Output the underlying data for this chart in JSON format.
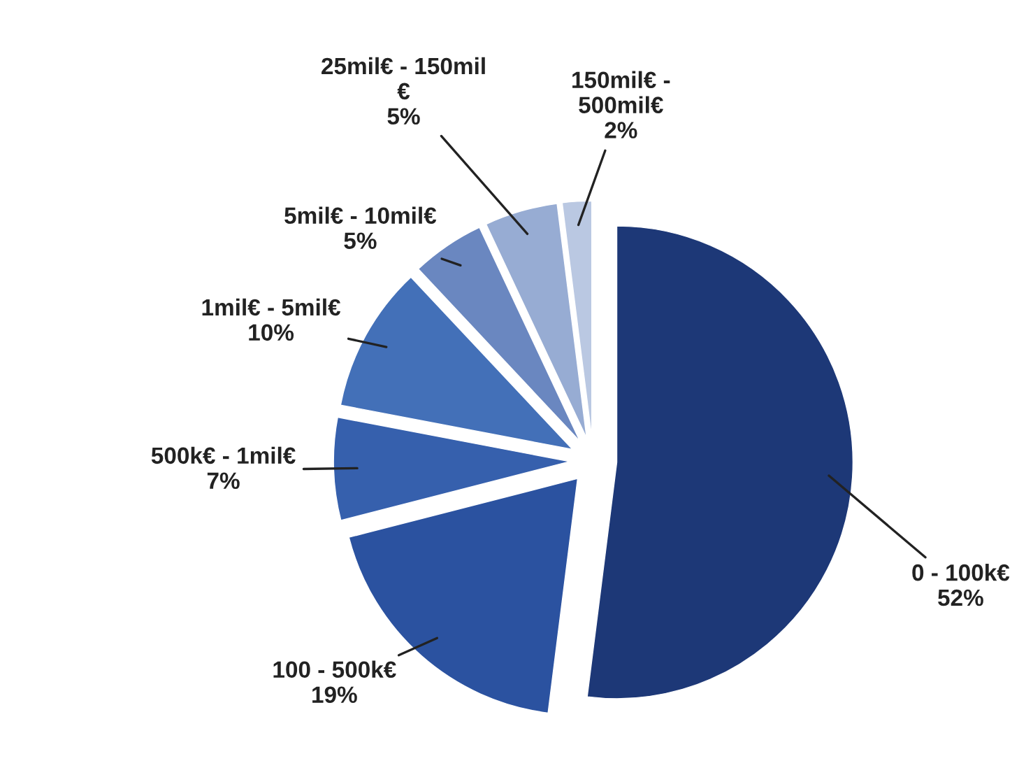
{
  "chart_data": {
    "type": "pie",
    "categories": [
      "0 - 100k€",
      "100 - 500k€",
      "500k€ - 1mil€",
      "1mil€ - 5mil€",
      "5mil€ - 10mil€",
      "25mil€ - 150mil\n€",
      "150mil€ -\n500mil€"
    ],
    "values": [
      52,
      19,
      7,
      10,
      5,
      5,
      2
    ],
    "value_labels": [
      "52%",
      "19%",
      "7%",
      "10%",
      "5%",
      "5%",
      "2%"
    ],
    "colors": [
      "#1d3877",
      "#2b52a0",
      "#3660ad",
      "#4370b8",
      "#6a87c0",
      "#97acd3",
      "#bac8e2"
    ],
    "legend": false
  }
}
